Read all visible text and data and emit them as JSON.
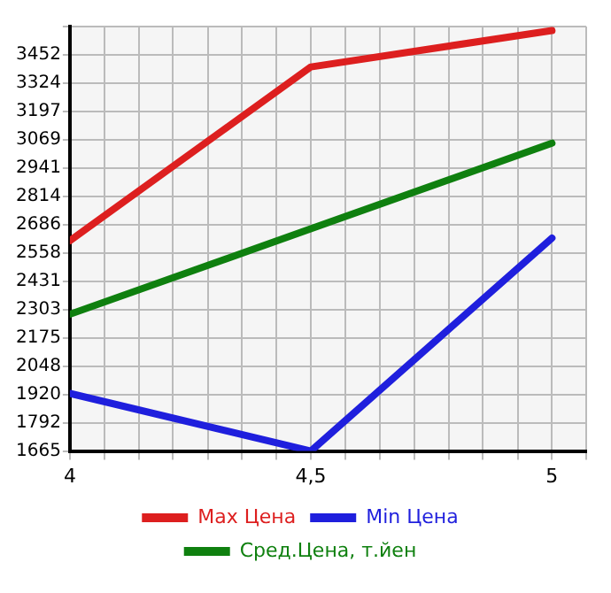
{
  "chart_data": {
    "type": "line",
    "x": [
      4,
      4.5,
      5
    ],
    "series": [
      {
        "name": "Max Цена",
        "color": "#dd1f1f",
        "values": [
          2614,
          3398,
          3562
        ]
      },
      {
        "name": "Min Цена",
        "color": "#1f1fdd",
        "values": [
          1925,
          1665,
          2626
        ]
      },
      {
        "name": "Сред.Цена, т.йен",
        "color": "#0f800f",
        "values": [
          2282,
          null,
          3054
        ]
      }
    ],
    "xlim": [
      4,
      5.071
    ],
    "xticks": [
      4,
      {
        "value": 4.071,
        "label": null
      },
      {
        "value": 4.143,
        "label": null
      },
      {
        "value": 4.214,
        "label": null
      },
      {
        "value": 4.286,
        "label": null
      },
      {
        "value": 4.357,
        "label": null
      },
      {
        "value": 4.429,
        "label": null
      },
      {
        "value": 4.5,
        "label": "4,5"
      },
      {
        "value": 4.571,
        "label": null
      },
      {
        "value": 4.643,
        "label": null
      },
      {
        "value": 4.714,
        "label": null
      },
      {
        "value": 4.786,
        "label": null
      },
      {
        "value": 4.857,
        "label": null
      },
      {
        "value": 4.929,
        "label": null
      },
      5,
      {
        "value": 5.071,
        "label": null
      }
    ],
    "ylim": [
      1665,
      3580
    ],
    "yticks": [
      1665,
      1792,
      1920,
      2048,
      2175,
      2303,
      2431,
      2558,
      2686,
      2814,
      2941,
      3069,
      3197,
      3324,
      3452,
      {
        "value": 3580,
        "label": null
      }
    ],
    "grid": true,
    "legend": "bottom",
    "marker": "none",
    "line_style": "solid"
  }
}
